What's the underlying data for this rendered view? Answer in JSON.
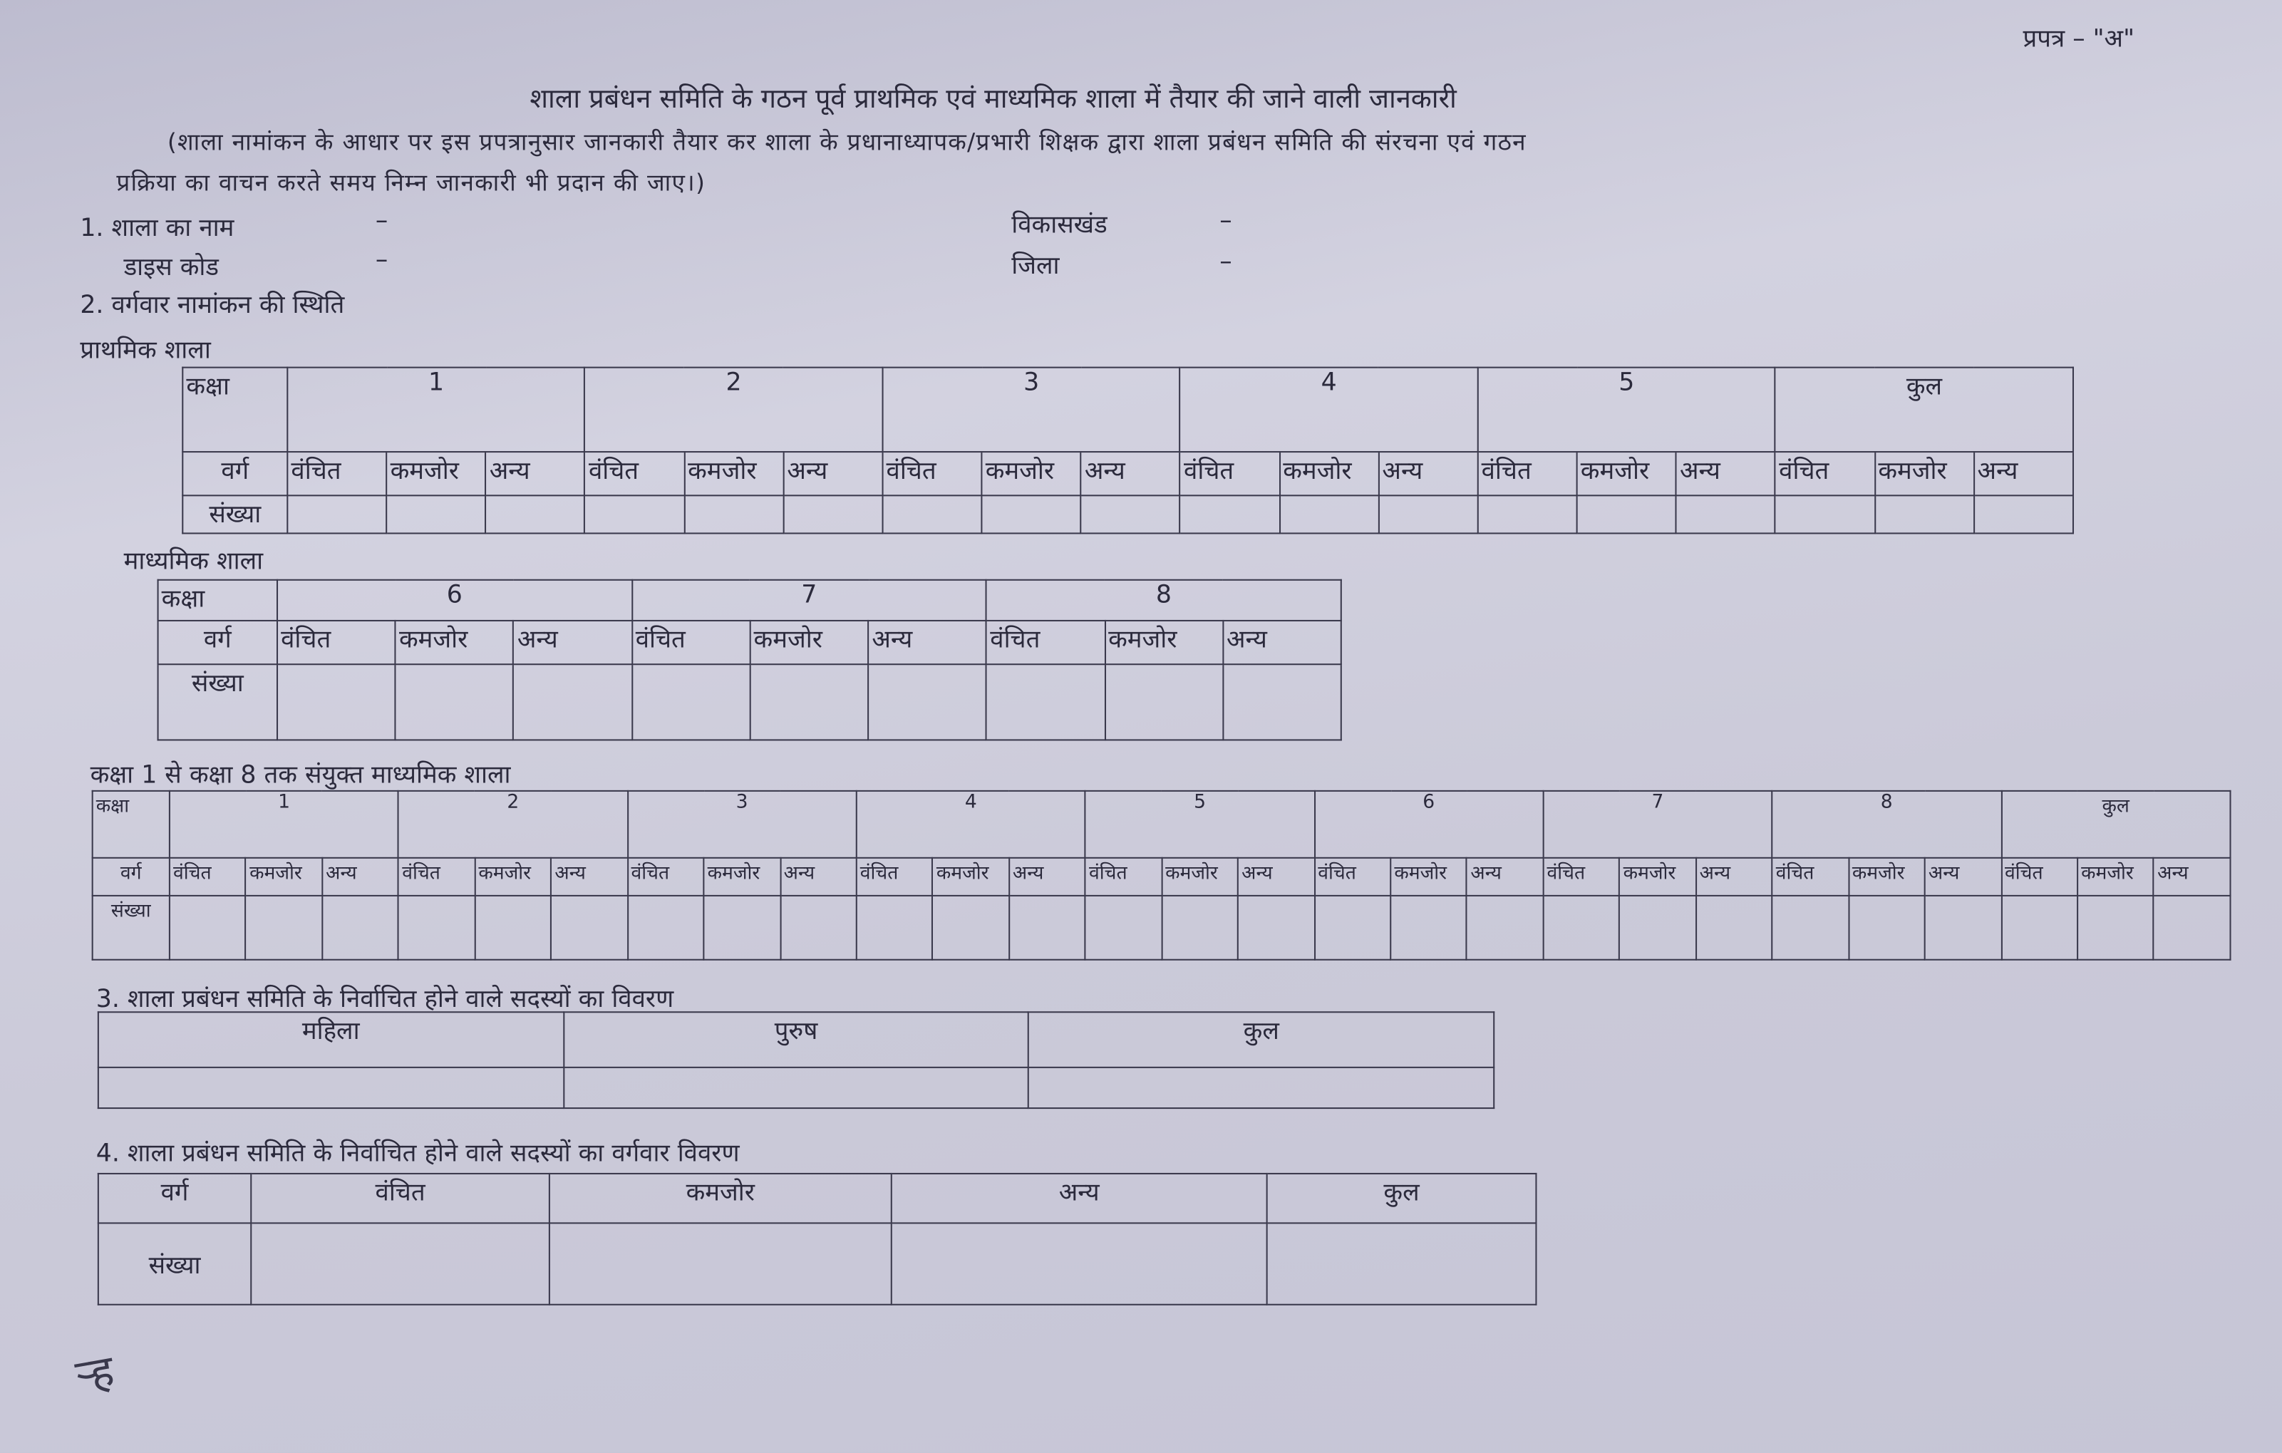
{
  "form_label": "प्रपत्र – \"अ\"",
  "title": "शाला प्रबंधन समिति के गठन पूर्व प्राथमिक एवं माध्यमिक शाला में तैयार की जाने वाली जानकारी",
  "instruction_line1": "(शाला नामांकन के आधार पर इस प्रपत्रानुसार जानकारी तैयार कर शाला के प्रधानाध्यापक/प्रभारी शिक्षक द्वारा शाला प्रबंधन समिति की संरचना एवं गठन",
  "instruction_line2": "प्रक्रिया का वाचन करते समय निम्न जानकारी भी प्रदान की जाए।)",
  "fields": {
    "school_name_label": "1. शाला का नाम",
    "school_name_value": "–",
    "dise_code_label": "डाइस कोड",
    "dise_code_value": "–",
    "block_label": "विकासखंड",
    "block_value": "–",
    "district_label": "जिला",
    "district_value": "–"
  },
  "section2": {
    "heading": "2. वर्गवार नामांकन की स्थिति",
    "primary": {
      "label": "प्राथमिक शाला",
      "class_label": "कक्षा",
      "category_label": "वर्ग",
      "count_label": "संख्या",
      "grades": [
        "1",
        "2",
        "3",
        "4",
        "5",
        "कुल"
      ],
      "categories": [
        "वंचित",
        "कमजोर",
        "अन्य"
      ]
    },
    "middle": {
      "label": "माध्यमिक शाला",
      "class_label": "कक्षा",
      "category_label": "वर्ग",
      "count_label": "संख्या",
      "grades": [
        "6",
        "7",
        "8"
      ],
      "categories": [
        "वंचित",
        "कमजोर",
        "अन्य"
      ]
    },
    "combined": {
      "label": "कक्षा 1 से कक्षा 8 तक संयुक्त माध्यमिक शाला",
      "class_label": "कक्षा",
      "category_label": "वर्ग",
      "count_label": "संख्या",
      "grades": [
        "1",
        "2",
        "3",
        "4",
        "5",
        "6",
        "7",
        "8",
        "कुल"
      ],
      "categories": [
        "वंचित",
        "कमजोर",
        "अन्य"
      ]
    }
  },
  "section3": {
    "heading": "3. शाला प्रबंधन समिति के निर्वाचित होने वाले सदस्यों का विवरण",
    "columns": [
      "महिला",
      "पुरुष",
      "कुल"
    ]
  },
  "section4": {
    "heading": "4. शाला प्रबंधन समिति के निर्वाचित होने वाले सदस्यों का वर्गवार विवरण",
    "category_label": "वर्ग",
    "count_label": "संख्या",
    "columns": [
      "वंचित",
      "कमजोर",
      "अन्य",
      "कुल"
    ]
  }
}
